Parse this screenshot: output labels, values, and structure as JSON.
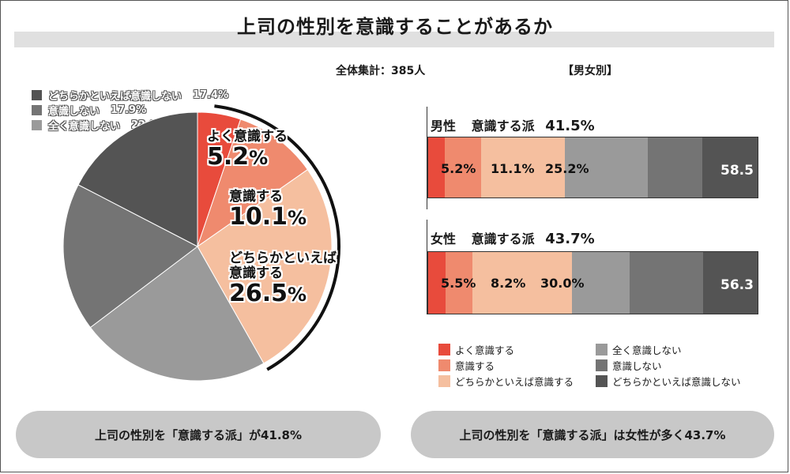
{
  "title": "上司の性別を意識することがあるか",
  "total_label": "全体集計：385人",
  "by_gender_label": "【男女別】",
  "colors": {
    "very_aware": "#e84b3c",
    "aware": "#ef8a6e",
    "somewhat_aware": "#f5bf9f",
    "not_at_all": "#9a9a9a",
    "not_aware": "#747474",
    "somewhat_not": "#545454"
  },
  "chart_data": [
    {
      "type": "pie",
      "slices": [
        {
          "label": "よく意識する",
          "value": 5.2,
          "display": "5.2",
          "color_key": "very_aware"
        },
        {
          "label": "意識する",
          "value": 10.1,
          "display": "10.1",
          "color_key": "aware"
        },
        {
          "label_line1": "どちらかといえば",
          "label_line2": "意識する",
          "value": 26.5,
          "display": "26.5",
          "color_key": "somewhat_aware"
        },
        {
          "label": "全く意識しない",
          "value": 22.9,
          "display": "22.9%",
          "color_key": "not_at_all"
        },
        {
          "label": "意識しない",
          "value": 17.9,
          "display": "17.9%",
          "color_key": "not_aware"
        },
        {
          "label": "どちらかといえば意識しない",
          "value": 17.4,
          "display": "17.4%",
          "color_key": "somewhat_not"
        }
      ],
      "pct_sign": "%"
    },
    {
      "type": "bar",
      "stacked": true,
      "orientation": "horizontal",
      "categories": [
        "男性",
        "女性"
      ],
      "group_label": "意識する派",
      "group_totals": [
        "41.5%",
        "43.7%"
      ],
      "series": [
        {
          "name": "よく意識する",
          "values": [
            5.2,
            5.5
          ],
          "labels": [
            "5.2%",
            "5.5%"
          ],
          "color_key": "very_aware"
        },
        {
          "name": "意識する",
          "values": [
            11.1,
            8.2
          ],
          "labels": [
            "11.1%",
            "8.2%"
          ],
          "color_key": "aware"
        },
        {
          "name": "どちらかといえば意識する",
          "values": [
            25.2,
            30.0
          ],
          "labels": [
            "25.2%",
            "30.0%"
          ],
          "color_key": "somewhat_aware"
        },
        {
          "name": "全く意識しない",
          "values": [
            25.0,
            17.5
          ],
          "color_key": "not_at_all"
        },
        {
          "name": "意識しない",
          "values": [
            16.5,
            22.0
          ],
          "color_key": "not_aware"
        },
        {
          "name": "どちらかといえば意識しない",
          "values": [
            17.0,
            16.8
          ],
          "color_key": "somewhat_not"
        }
      ],
      "not_aware_totals": [
        "58.5",
        "56.3"
      ]
    }
  ],
  "summary_left": "上司の性別を「意識する派」が41.8%",
  "summary_right": "上司の性別を「意識する派」は女性が多く43.7%"
}
